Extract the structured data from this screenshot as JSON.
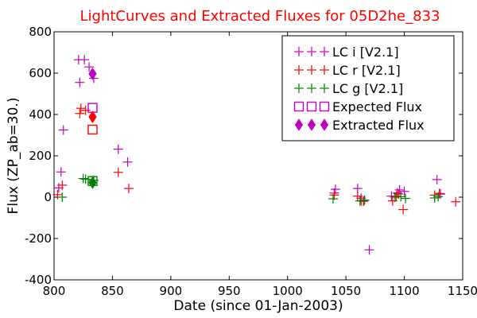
{
  "chart_data": {
    "type": "scatter",
    "title": "LightCurves and Extracted Fluxes for 05D2he_833",
    "title_color": "#ff0000",
    "xlabel": "Date (since 01-Jan-2003)",
    "ylabel": "Flux (ZP_ab=30.)",
    "xlim": [
      800,
      1150
    ],
    "ylim": [
      -400,
      800
    ],
    "xticks": [
      800,
      850,
      900,
      950,
      1000,
      1050,
      1100,
      1150
    ],
    "yticks": [
      -400,
      -200,
      0,
      200,
      400,
      600,
      800
    ],
    "grid": false,
    "legend_position": "top-right",
    "series": [
      {
        "name": "LC i [V2.1]",
        "color": "#bf00bf",
        "marker": "plus",
        "points": [
          [
            804,
            45
          ],
          [
            806,
            122
          ],
          [
            808,
            325
          ],
          [
            821,
            665
          ],
          [
            822,
            555
          ],
          [
            826,
            665
          ],
          [
            830,
            630
          ],
          [
            834,
            575
          ],
          [
            855,
            232
          ],
          [
            863,
            170
          ],
          [
            1040,
            20
          ],
          [
            1041,
            38
          ],
          [
            1060,
            42
          ],
          [
            1063,
            -5
          ],
          [
            1065,
            -18
          ],
          [
            1070,
            -255
          ],
          [
            1089,
            5
          ],
          [
            1094,
            20
          ],
          [
            1096,
            35
          ],
          [
            1100,
            28
          ],
          [
            1128,
            85
          ],
          [
            1131,
            15
          ]
        ]
      },
      {
        "name": "LC r [V2.1]",
        "color": "#ff0000",
        "marker": "plus",
        "points": [
          [
            803,
            12
          ],
          [
            807,
            58
          ],
          [
            822,
            405
          ],
          [
            823,
            430
          ],
          [
            827,
            420
          ],
          [
            855,
            120
          ],
          [
            864,
            42
          ],
          [
            1040,
            10
          ],
          [
            1060,
            5
          ],
          [
            1063,
            -18
          ],
          [
            1065,
            -20
          ],
          [
            1090,
            -18
          ],
          [
            1093,
            5
          ],
          [
            1095,
            15
          ],
          [
            1099,
            -60
          ],
          [
            1126,
            10
          ],
          [
            1130,
            18
          ],
          [
            1144,
            -22
          ]
        ]
      },
      {
        "name": "LC g [V2.1]",
        "color": "#008000",
        "marker": "plus",
        "points": [
          [
            807,
            0
          ],
          [
            825,
            90
          ],
          [
            827,
            87
          ],
          [
            834,
            82
          ],
          [
            1039,
            -8
          ],
          [
            1062,
            -18
          ],
          [
            1066,
            -14
          ],
          [
            1092,
            0
          ],
          [
            1097,
            2
          ],
          [
            1101,
            -6
          ],
          [
            1126,
            -4
          ],
          [
            1129,
            2
          ]
        ]
      },
      {
        "name": "Expected Flux",
        "marker": "square",
        "points": [
          {
            "x": 833,
            "y": 432,
            "color": "#bf00bf"
          },
          {
            "x": 833,
            "y": 327,
            "color": "#ff0000"
          },
          {
            "x": 833,
            "y": 78,
            "color": "#008000"
          }
        ]
      },
      {
        "name": "Extracted Flux",
        "marker": "diamond",
        "points": [
          {
            "x": 833,
            "y": 597,
            "color": "#bf00bf"
          },
          {
            "x": 833,
            "y": 388,
            "color": "#ff0000"
          },
          {
            "x": 833,
            "y": 70,
            "color": "#008000"
          }
        ]
      }
    ],
    "legend": [
      {
        "label": "LC i [V2.1]",
        "marker": "plus",
        "color": "#bf00bf"
      },
      {
        "label": "LC r [V2.1]",
        "marker": "plus",
        "color": "#ff0000"
      },
      {
        "label": "LC g [V2.1]",
        "marker": "plus",
        "color": "#008000"
      },
      {
        "label": "Expected Flux",
        "marker": "square",
        "color": "#bf00bf"
      },
      {
        "label": "Extracted Flux",
        "marker": "diamond",
        "color": "#bf00bf"
      }
    ]
  }
}
